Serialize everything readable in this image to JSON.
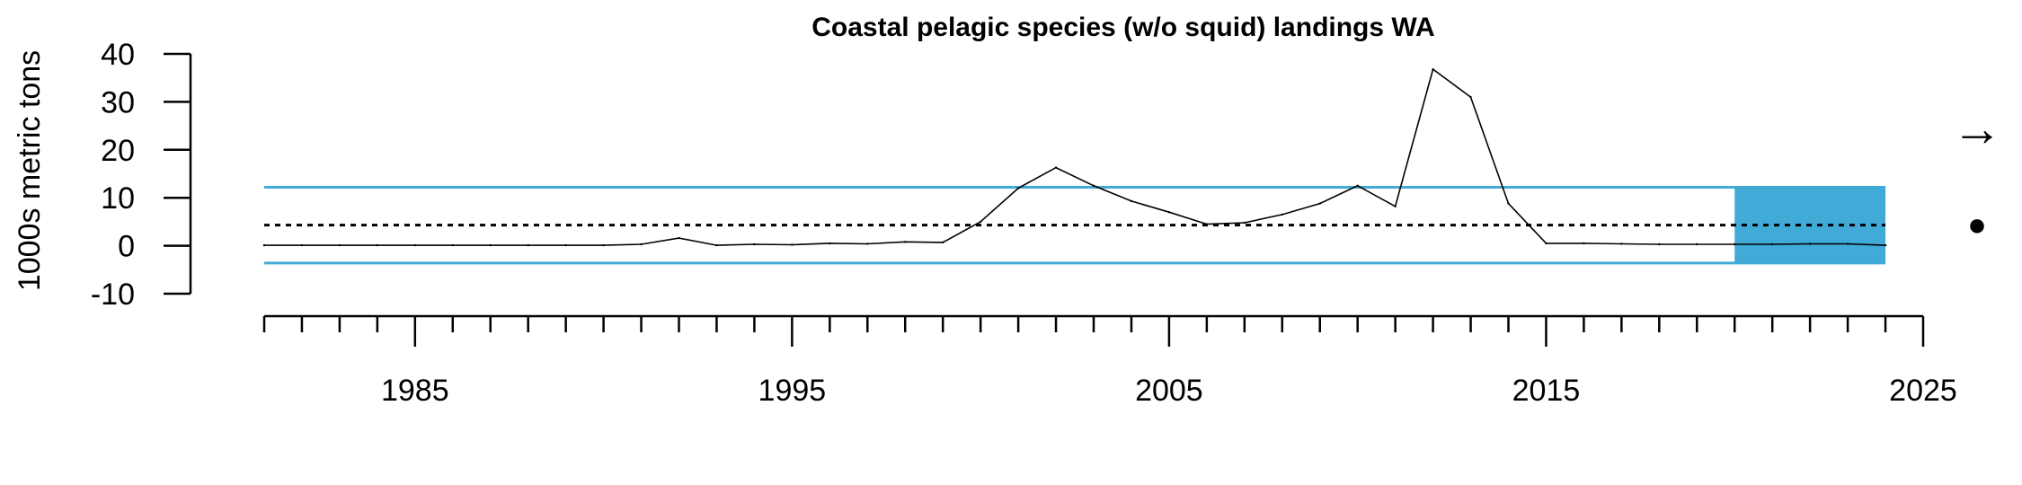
{
  "chart_data": {
    "type": "line",
    "title": "Coastal pelagic species (w/o squid) landings WA",
    "xlabel": "",
    "ylabel": "1000s metric tons",
    "xlim": [
      1981,
      2025
    ],
    "ylim": [
      -10,
      40
    ],
    "y_ticks": [
      -10,
      0,
      10,
      20,
      30,
      40
    ],
    "x_tick_labels": [
      1985,
      1995,
      2005,
      2015,
      2025
    ],
    "grid": false,
    "series": [
      {
        "color": "#000000",
        "x": [
          1981,
          1982,
          1983,
          1984,
          1985,
          1986,
          1987,
          1988,
          1989,
          1990,
          1991,
          1992,
          1993,
          1994,
          1995,
          1996,
          1997,
          1998,
          1999,
          2000,
          2001,
          2002,
          2003,
          2004,
          2005,
          2006,
          2007,
          2008,
          2009,
          2010,
          2011,
          2012,
          2013,
          2014,
          2015,
          2016,
          2017,
          2018,
          2019,
          2020,
          2021,
          2022,
          2023,
          2024
        ],
        "values": [
          0.1,
          0.1,
          0.1,
          0.1,
          0.1,
          0.1,
          0.1,
          0.1,
          0.1,
          0.1,
          0.3,
          1.6,
          0.1,
          0.3,
          0.2,
          0.5,
          0.4,
          0.8,
          0.7,
          5.0,
          12.0,
          16.3,
          12.5,
          9.3,
          7.0,
          4.5,
          4.8,
          6.5,
          8.8,
          12.5,
          8.2,
          36.8,
          31.0,
          8.8,
          0.5,
          0.5,
          0.4,
          0.3,
          0.3,
          0.3,
          0.3,
          0.4,
          0.4,
          0.1
        ]
      }
    ],
    "mean_line": 4.3,
    "sd_band": [
      -3.6,
      12.2
    ],
    "recent_period_shaded": [
      2020,
      2024
    ],
    "shade_color": "#41aad7",
    "trend_symbol": "→",
    "status_symbol": "●"
  }
}
